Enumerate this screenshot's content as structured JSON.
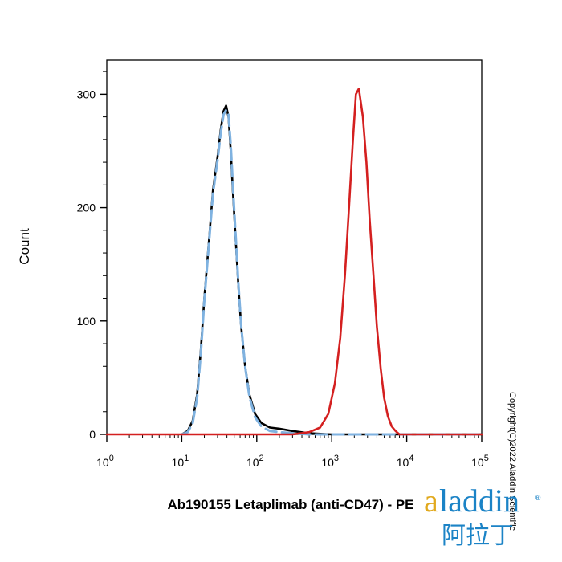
{
  "chart_data": {
    "type": "line",
    "title": "",
    "xlabel": "Ab190155 Letaplimab (anti-CD47) - PE",
    "ylabel": "Count",
    "x_scale": "log",
    "xlim": [
      1,
      100000
    ],
    "ylim": [
      0,
      330
    ],
    "x_ticks": [
      {
        "base": "10",
        "exp": "0"
      },
      {
        "base": "10",
        "exp": "1"
      },
      {
        "base": "10",
        "exp": "2"
      },
      {
        "base": "10",
        "exp": "3"
      },
      {
        "base": "10",
        "exp": "4"
      },
      {
        "base": "10",
        "exp": "5"
      }
    ],
    "y_ticks": [
      "0",
      "100",
      "200",
      "300"
    ],
    "grid": false,
    "series": [
      {
        "color": "#000000",
        "style": "solid",
        "x": [
          10,
          12,
          14,
          16,
          18,
          20,
          23,
          26,
          30,
          33,
          36,
          39,
          42,
          45,
          48,
          52,
          57,
          62,
          70,
          80,
          95,
          115,
          150,
          200,
          300,
          500,
          1000,
          100000
        ],
        "y": [
          0,
          3,
          12,
          35,
          75,
          120,
          170,
          215,
          245,
          268,
          285,
          290,
          280,
          250,
          215,
          175,
          130,
          95,
          60,
          35,
          18,
          10,
          6,
          5,
          3,
          1,
          0,
          0
        ]
      },
      {
        "color": "#7fb2e0",
        "style": "dashed",
        "x": [
          10,
          12,
          14,
          16,
          18,
          20,
          23,
          26,
          30,
          33,
          36,
          39,
          42,
          45,
          48,
          52,
          57,
          62,
          70,
          80,
          95,
          115,
          150,
          200,
          300,
          500,
          1000,
          100000
        ],
        "y": [
          0,
          2,
          10,
          32,
          72,
          118,
          168,
          212,
          242,
          265,
          282,
          286,
          282,
          255,
          220,
          178,
          132,
          96,
          60,
          33,
          15,
          7,
          3,
          2,
          1,
          0,
          0,
          0
        ]
      },
      {
        "color": "#d42020",
        "style": "solid",
        "x": [
          1,
          300,
          500,
          700,
          900,
          1100,
          1300,
          1500,
          1700,
          1900,
          2100,
          2300,
          2600,
          2900,
          3200,
          3600,
          4000,
          4500,
          5000,
          5600,
          6300,
          7100,
          8000,
          100000
        ],
        "y": [
          0,
          0,
          2,
          6,
          18,
          45,
          85,
          140,
          200,
          255,
          300,
          305,
          280,
          240,
          190,
          140,
          95,
          58,
          32,
          16,
          7,
          3,
          0,
          0
        ]
      }
    ]
  },
  "copyright": "Copyright(C)2022 Aladdin Scientific",
  "brand": {
    "logo_first": "a",
    "logo_rest": "laddin",
    "logo_cn": "阿拉丁",
    "registered": "®"
  }
}
